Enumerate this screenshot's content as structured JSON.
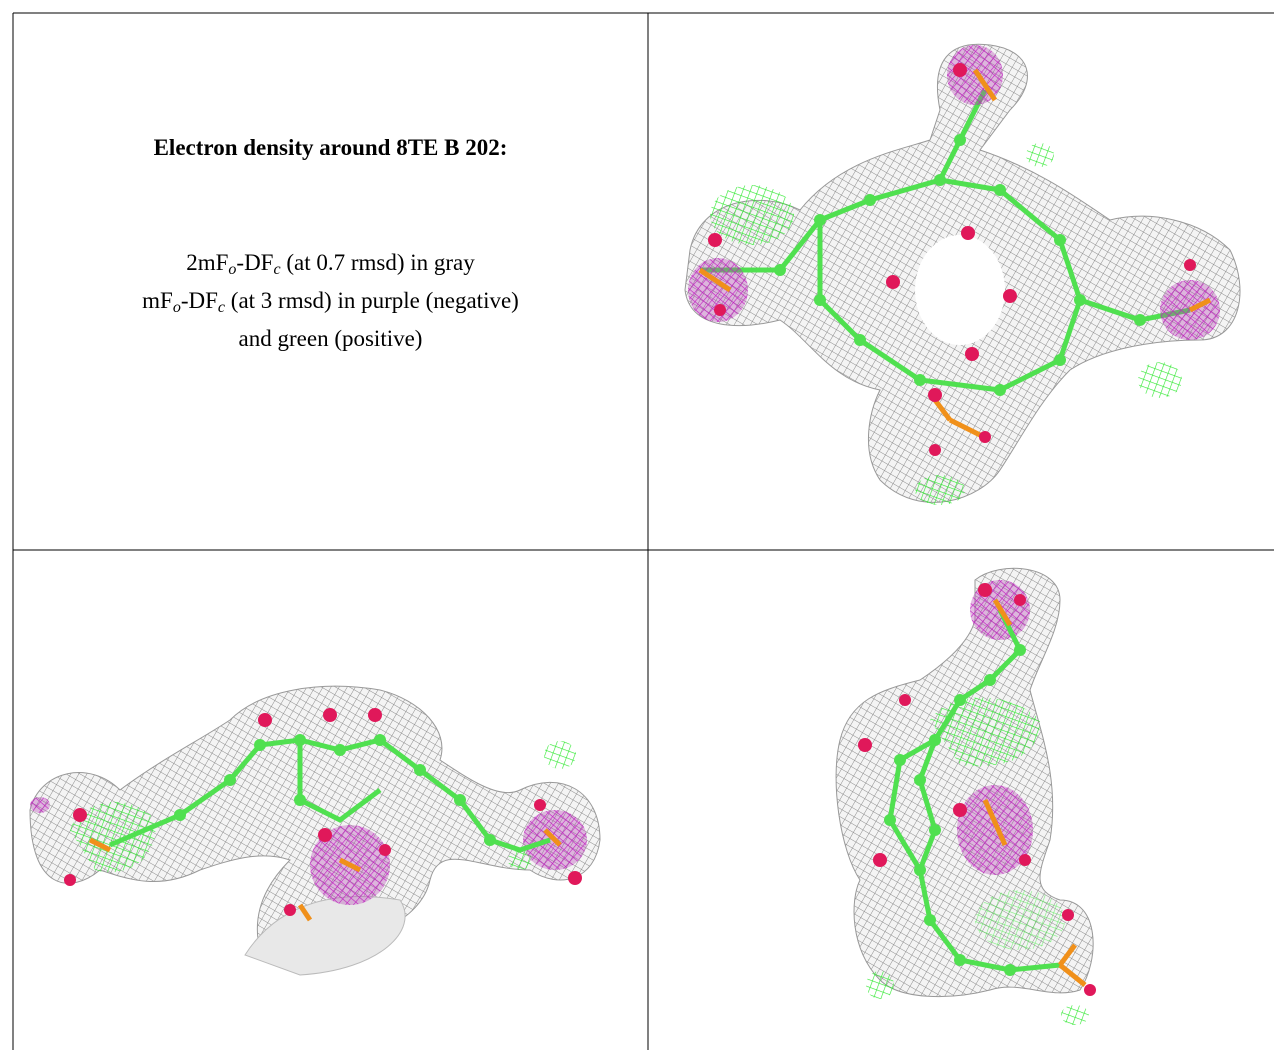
{
  "caption": {
    "title": "Electron density around 8TE B 202:",
    "lines": [
      [
        "2mF",
        "o",
        "-DF",
        "c",
        " (at 0.7 rmsd) in gray"
      ],
      [
        "mF",
        "o",
        "-DF",
        "c",
        " (at 3 rmsd) in purple (negative)"
      ],
      [
        "and green (positive)"
      ]
    ]
  }
}
